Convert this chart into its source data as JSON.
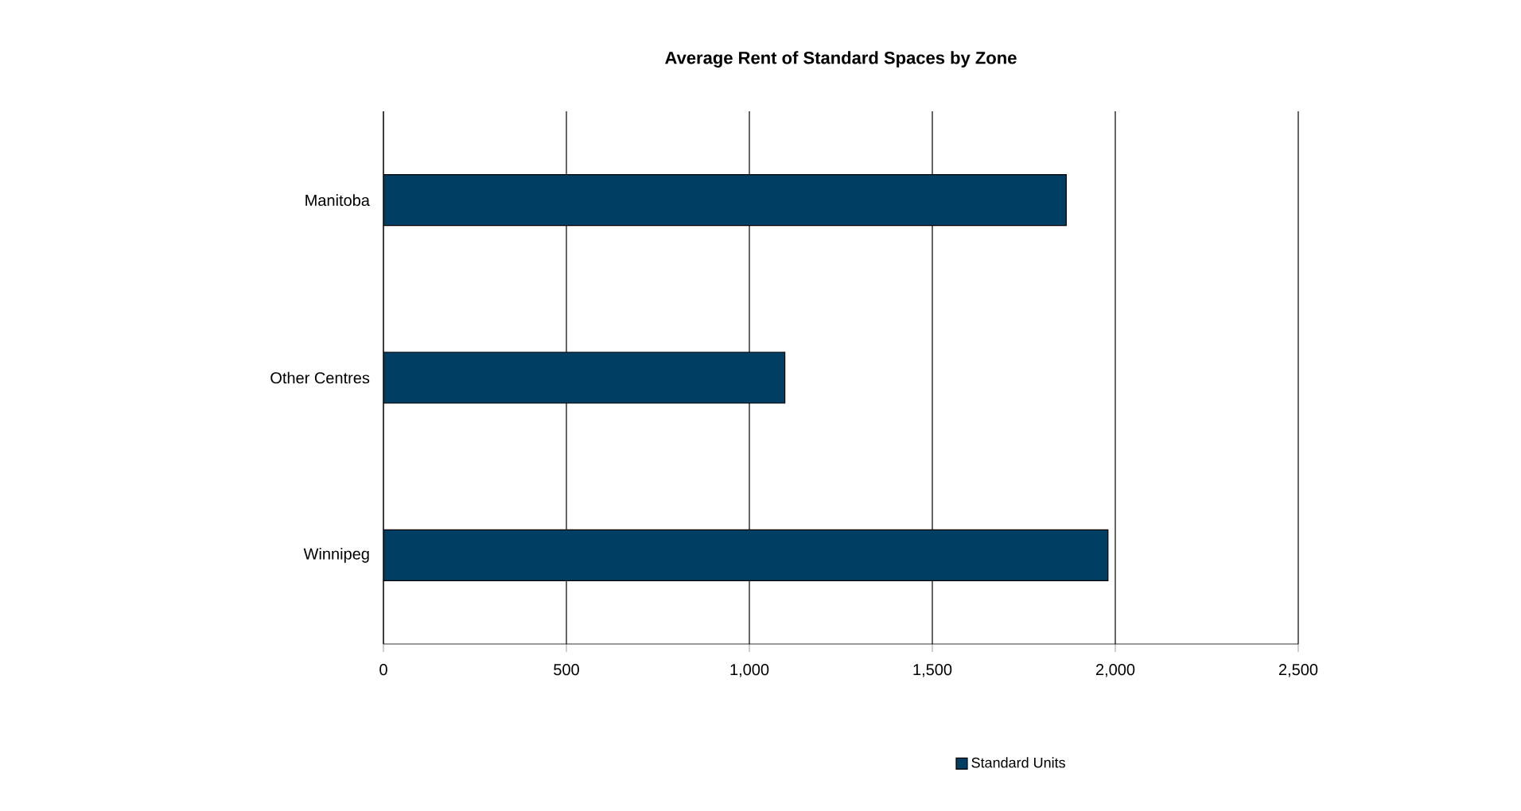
{
  "chart_data": {
    "type": "bar",
    "orientation": "horizontal",
    "title": "Average Rent of Standard Spaces by Zone",
    "categories": [
      "Manitoba",
      "Other Centres",
      "Winnipeg"
    ],
    "series": [
      {
        "name": "Standard Units",
        "color": "#003f63",
        "values": [
          1866,
          1097,
          1980
        ]
      }
    ],
    "xlim": [
      0,
      2500
    ],
    "xticks": [
      0,
      500,
      {
        "value": 1000,
        "label": "1,000"
      },
      {
        "value": 1500,
        "label": "1,500"
      },
      {
        "value": 2000,
        "label": "2,000"
      },
      {
        "value": 2500,
        "label": "2,500"
      }
    ],
    "grid": "x",
    "legend": "bottom right"
  }
}
